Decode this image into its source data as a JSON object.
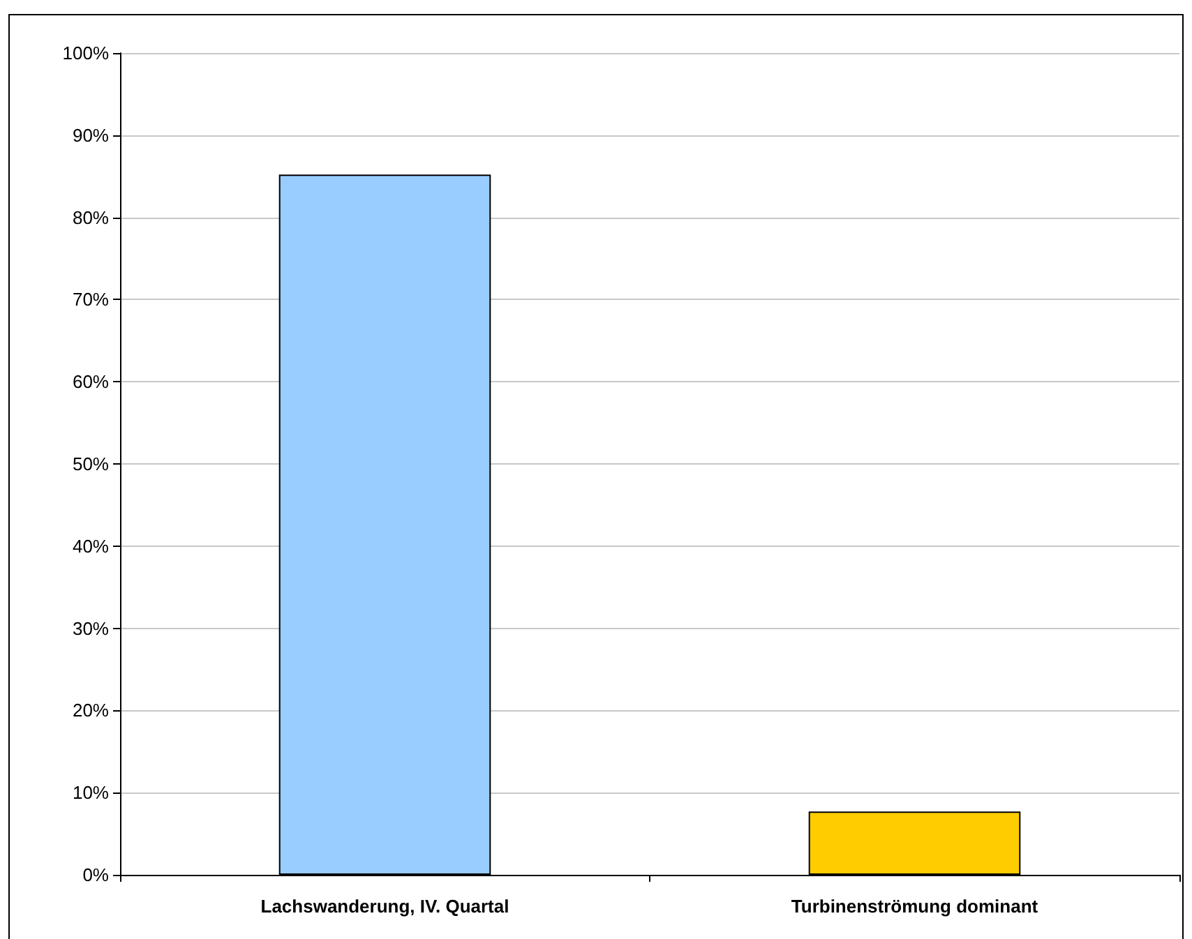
{
  "chart_data": {
    "type": "bar",
    "categories": [
      "Lachswanderung, IV. Quartal",
      "Turbinenströmung dominant"
    ],
    "values": [
      85.2,
      7.7
    ],
    "colors": [
      "#99ccff",
      "#ffcc00"
    ],
    "ylim": [
      0,
      100
    ],
    "yticks": [
      {
        "value": 0,
        "label": "0%"
      },
      {
        "value": 10,
        "label": "10%"
      },
      {
        "value": 20,
        "label": "20%"
      },
      {
        "value": 30,
        "label": "30%"
      },
      {
        "value": 40,
        "label": "40%"
      },
      {
        "value": 50,
        "label": "50%"
      },
      {
        "value": 60,
        "label": "60%"
      },
      {
        "value": 70,
        "label": "70%"
      },
      {
        "value": 80,
        "label": "80%"
      },
      {
        "value": 90,
        "label": "90%"
      },
      {
        "value": 100,
        "label": "100%"
      }
    ],
    "grid": "y"
  }
}
